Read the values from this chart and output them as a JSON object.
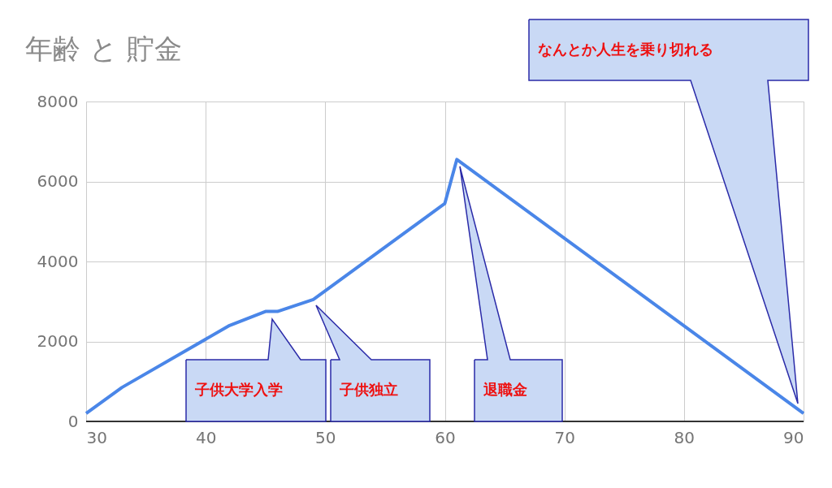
{
  "chart_data": {
    "type": "line",
    "title": "年齢 と 貯金",
    "x": [
      30,
      33,
      42,
      45,
      46,
      49,
      60,
      61,
      90
    ],
    "series": [
      {
        "color": "#4a86e8",
        "values": [
          200,
          850,
          2400,
          2750,
          2750,
          3050,
          5450,
          6550,
          200
        ]
      }
    ],
    "xlim": [
      30,
      90
    ],
    "xticks": [
      30,
      40,
      50,
      60,
      70,
      80,
      90
    ],
    "ylim": [
      0,
      8000
    ],
    "yticks": [
      0,
      2000,
      4000,
      6000,
      8000
    ],
    "grid": true,
    "annotations": [
      "子供大学入学",
      "子供独立",
      "退職金",
      "なんとか人生を乗り切れる"
    ]
  }
}
